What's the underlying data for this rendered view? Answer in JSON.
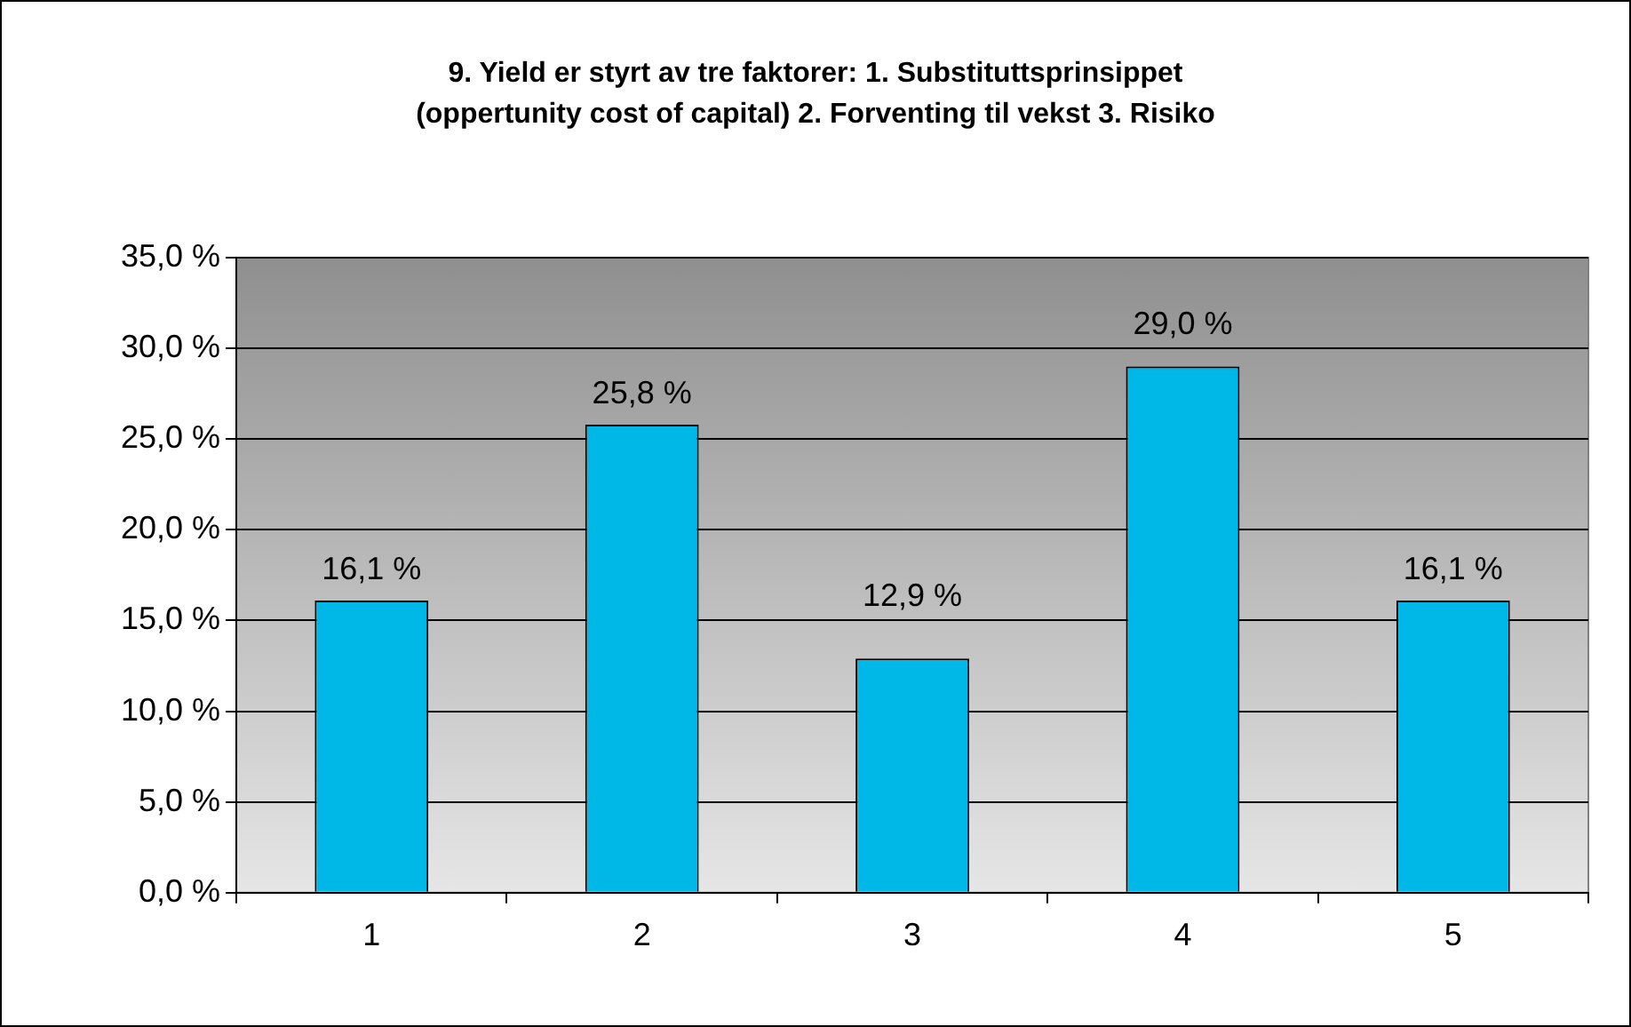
{
  "chart_data": {
    "type": "bar",
    "title": "9. Yield er styrt av tre faktorer: 1. Substituttsprinsippet (oppertunity cost of capital) 2. Forventing til vekst 3. Risiko",
    "categories": [
      "1",
      "2",
      "3",
      "4",
      "5"
    ],
    "values": [
      16.1,
      25.8,
      12.9,
      29.0,
      16.1
    ],
    "value_labels": [
      "16,1 %",
      "25,8 %",
      "12,9 %",
      "29,0 %",
      "16,1 %"
    ],
    "color": "#00b8e8",
    "ylim": [
      0,
      35
    ],
    "yticks": [
      {
        "value": 0,
        "label": "0,0 %"
      },
      {
        "value": 5,
        "label": "5,0 %"
      },
      {
        "value": 10,
        "label": "10,0 %"
      },
      {
        "value": 15,
        "label": "15,0 %"
      },
      {
        "value": 20,
        "label": "20,0 %"
      },
      {
        "value": 25,
        "label": "25,0 %"
      },
      {
        "value": 30,
        "label": "30,0 %"
      },
      {
        "value": 35,
        "label": "35,0 %"
      }
    ],
    "grid": "y",
    "legend": false
  }
}
